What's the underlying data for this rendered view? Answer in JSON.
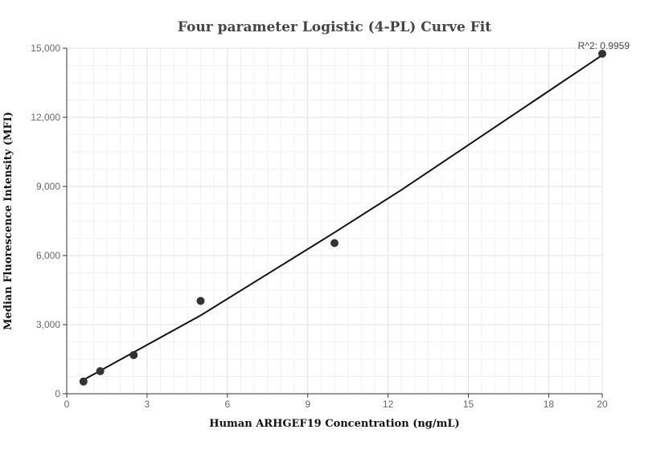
{
  "chart_data": {
    "type": "scatter",
    "title": "Four parameter Logistic (4-PL) Curve Fit",
    "xlabel": "Human ARHGEF19 Concentration (ng/mL)",
    "ylabel": "Median Fluorescence Intensity (MFI)",
    "xlim": [
      0,
      20
    ],
    "ylim": [
      0,
      15000
    ],
    "x_ticks": [
      0,
      3,
      6,
      9,
      12,
      15,
      18,
      20
    ],
    "x_tick_labels": [
      "0",
      "3",
      "6",
      "9",
      "12",
      "15",
      "18",
      "20"
    ],
    "y_ticks": [
      0,
      3000,
      6000,
      9000,
      12000,
      15000
    ],
    "y_tick_labels": [
      "0",
      "3,000",
      "6,000",
      "9,000",
      "12,000",
      "15,000"
    ],
    "grid": true,
    "series": [
      {
        "type": "scatter",
        "x": [
          0.625,
          1.25,
          2.5,
          5,
          10,
          20
        ],
        "y": [
          530,
          980,
          1680,
          4030,
          6540,
          14760
        ]
      },
      {
        "type": "line",
        "x": [
          0.625,
          1.25,
          2.5,
          5,
          7.5,
          10,
          12.5,
          15,
          17.5,
          20
        ],
        "y": [
          600,
          1000,
          1800,
          3400,
          5200,
          7000,
          8850,
          10800,
          12750,
          14700
        ]
      }
    ],
    "annotations": [
      {
        "text": "R^2: 0.9959",
        "x": 20,
        "y": 14760
      }
    ]
  }
}
